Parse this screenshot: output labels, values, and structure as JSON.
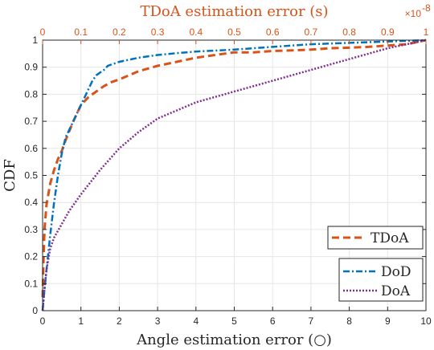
{
  "chart_data": {
    "type": "line",
    "title": "TDoA estimation error (s)",
    "top_axis_exponent_base": "×10",
    "top_axis_exponent_power": "-8",
    "xlabel": "Angle estimation error (○)",
    "ylabel": "CDF",
    "xlim": [
      0,
      10
    ],
    "ylim": [
      0,
      1
    ],
    "x2lim": [
      0,
      1
    ],
    "grid": true,
    "x_ticks": [
      "0",
      "1",
      "2",
      "3",
      "4",
      "5",
      "6",
      "7",
      "8",
      "9",
      "10"
    ],
    "x2_ticks": [
      "0",
      "0.1",
      "0.2",
      "0.3",
      "0.4",
      "0.5",
      "0.6",
      "0.7",
      "0.8",
      "0.9",
      "1"
    ],
    "y_ticks": [
      "0",
      "0.1",
      "0.2",
      "0.3",
      "0.4",
      "0.5",
      "0.6",
      "0.7",
      "0.8",
      "0.9",
      "1"
    ],
    "colors": {
      "tdoa": "#D95319",
      "dod": "#0072BD",
      "doa": "#7E2F8E",
      "axis": "#262626",
      "grid": "#e6e6e6"
    },
    "legend_top": {
      "position": "right",
      "entries": [
        "TDoA"
      ]
    },
    "legend_bottom": {
      "position": "bottom-right",
      "entries": [
        "DoD",
        "DoA"
      ]
    },
    "series": [
      {
        "name": "TDoA",
        "axis": "top",
        "style": "dashed",
        "x": [
          0,
          0.002,
          0.005,
          0.01,
          0.02,
          0.03,
          0.04,
          0.05,
          0.06,
          0.08,
          0.1,
          0.12,
          0.14,
          0.16,
          0.18,
          0.2,
          0.25,
          0.3,
          0.35,
          0.4,
          0.45,
          0.5,
          0.55,
          0.6,
          0.65,
          0.7,
          0.75,
          0.8,
          0.85,
          0.9,
          0.95,
          1.0
        ],
        "y": [
          0.05,
          0.17,
          0.3,
          0.39,
          0.47,
          0.52,
          0.56,
          0.59,
          0.63,
          0.7,
          0.76,
          0.79,
          0.81,
          0.83,
          0.845,
          0.855,
          0.885,
          0.905,
          0.92,
          0.935,
          0.945,
          0.955,
          0.955,
          0.96,
          0.962,
          0.965,
          0.97,
          0.972,
          0.975,
          0.98,
          0.985,
          1.0
        ]
      },
      {
        "name": "DoD",
        "axis": "bottom",
        "style": "dashdot",
        "x": [
          0,
          0.05,
          0.1,
          0.2,
          0.3,
          0.4,
          0.5,
          0.6,
          0.7,
          0.8,
          0.9,
          1.0,
          1.1,
          1.2,
          1.3,
          1.4,
          1.5,
          1.6,
          1.7,
          1.8,
          2.0,
          2.5,
          3.0,
          3.5,
          4.0,
          5.0,
          6.0,
          7.0,
          8.0,
          9.0,
          10.0
        ],
        "y": [
          0.0,
          0.08,
          0.15,
          0.28,
          0.4,
          0.5,
          0.58,
          0.64,
          0.67,
          0.7,
          0.73,
          0.76,
          0.79,
          0.82,
          0.85,
          0.87,
          0.88,
          0.89,
          0.905,
          0.91,
          0.92,
          0.935,
          0.945,
          0.952,
          0.958,
          0.965,
          0.975,
          0.985,
          0.99,
          0.995,
          1.0
        ]
      },
      {
        "name": "DoA",
        "axis": "bottom",
        "style": "dotted",
        "x": [
          0,
          0.05,
          0.1,
          0.2,
          0.3,
          0.5,
          0.7,
          1.0,
          1.5,
          2.0,
          2.5,
          3.0,
          3.5,
          4.0,
          4.5,
          5.0,
          5.5,
          6.0,
          6.5,
          7.0,
          7.5,
          8.0,
          8.5,
          9.0,
          9.5,
          10.0
        ],
        "y": [
          0.0,
          0.08,
          0.15,
          0.23,
          0.27,
          0.32,
          0.37,
          0.43,
          0.52,
          0.6,
          0.66,
          0.71,
          0.74,
          0.77,
          0.79,
          0.81,
          0.83,
          0.85,
          0.87,
          0.89,
          0.91,
          0.93,
          0.95,
          0.97,
          0.985,
          1.0
        ]
      }
    ]
  }
}
